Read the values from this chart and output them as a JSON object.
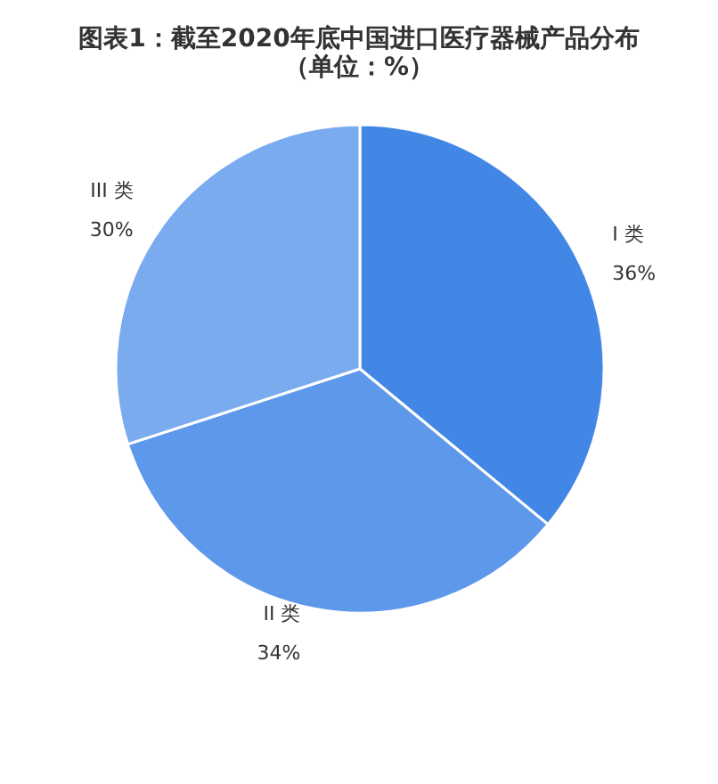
{
  "chart_data": {
    "type": "pie",
    "title": "图表1：截至2020年底中国进口医疗器械产品分布",
    "subtitle": "（单位：%）",
    "categories": [
      "I 类",
      "II 类",
      "III 类"
    ],
    "values": [
      36,
      34,
      30
    ],
    "value_labels": [
      "36%",
      "34%",
      "30%"
    ],
    "colors": [
      "#4387e6",
      "#5e98ea",
      "#7aabee"
    ]
  }
}
